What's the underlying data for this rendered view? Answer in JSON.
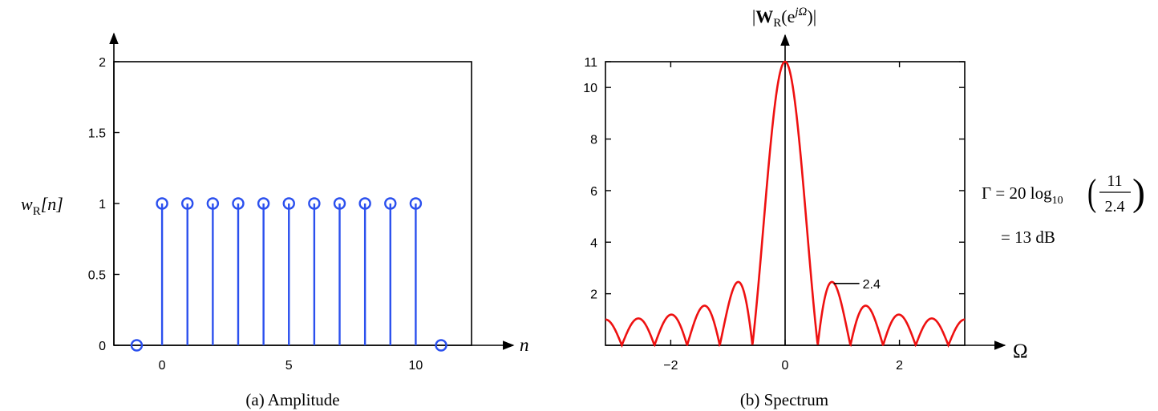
{
  "chart_data": [
    {
      "type": "stem",
      "ylabel_pre": "w",
      "ylabel_sub": "R",
      "ylabel_post": "[n]",
      "xlabel": "n",
      "caption": "(a) Amplitude",
      "xlim": [
        -1.9,
        12.2
      ],
      "ylim": [
        0,
        2
      ],
      "xticks": [
        0,
        5,
        10
      ],
      "yticks": [
        0,
        0.5,
        1,
        1.5,
        2
      ],
      "ytick_labels": [
        "0",
        "0.5",
        "1",
        "1.5",
        "2"
      ],
      "x": [
        -1,
        0,
        1,
        2,
        3,
        4,
        5,
        6,
        7,
        8,
        9,
        10,
        11
      ],
      "values": [
        0,
        1,
        1,
        1,
        1,
        1,
        1,
        1,
        1,
        1,
        1,
        1,
        0
      ],
      "color": "#2b50ee"
    },
    {
      "type": "line",
      "title_pre": "|",
      "title_bold": "W",
      "title_sub": "R",
      "title_paren": "(e",
      "title_sup": "jΩ",
      "title_post": ")|",
      "xlabel": "Ω",
      "caption": "(b) Spectrum",
      "xlim": [
        -3.14159,
        3.14159
      ],
      "ylim": [
        0,
        11
      ],
      "xticks": [
        -2,
        0,
        2
      ],
      "xtick_labels": [
        "−2",
        "0",
        "2"
      ],
      "yticks": [
        2,
        4,
        6,
        8,
        10,
        11
      ],
      "ytick_labels": [
        "2",
        "4",
        "6",
        "8",
        "10",
        "11"
      ],
      "function": "abs(sin(11*x/2)/sin(x/2))",
      "color": "#ee1111",
      "annotation": {
        "text": "2.4",
        "x": 0.85,
        "y": 2.4
      },
      "eq1_lhs": "Γ = 20 log",
      "eq1_sub": "10",
      "eq1_num": "11",
      "eq1_den": "2.4",
      "eq2": "= 13 dB"
    }
  ]
}
